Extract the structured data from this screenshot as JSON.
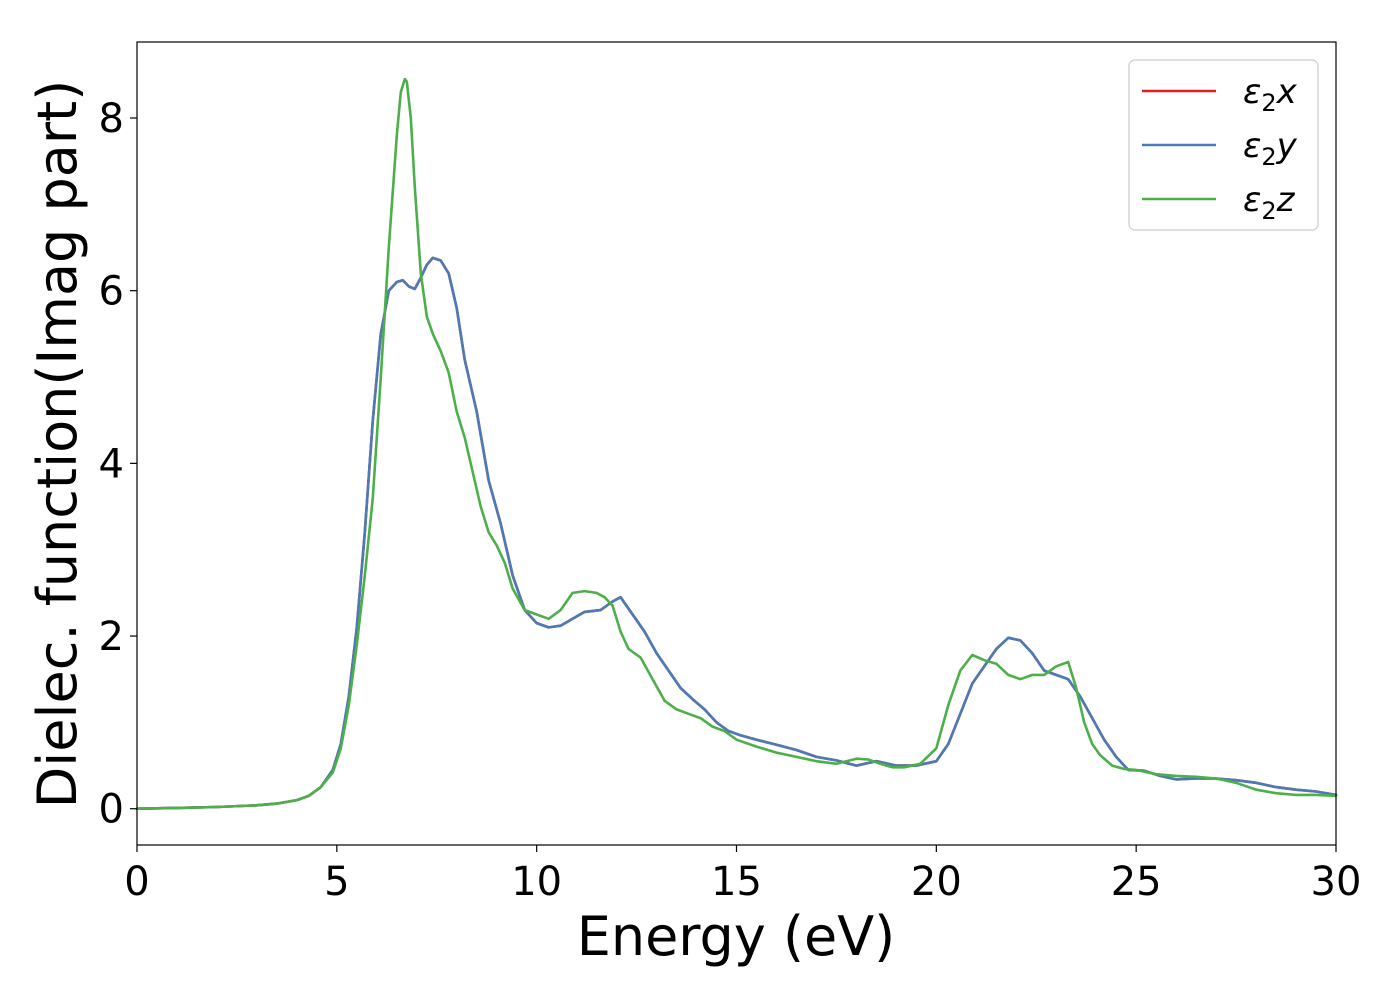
{
  "chart_data": {
    "type": "line",
    "xlabel": "Energy (eV)",
    "ylabel": "Dielec. function(Imag part)",
    "xlim": [
      0,
      30
    ],
    "ylim": [
      -0.42,
      8.88
    ],
    "xticks": [
      "0",
      "5",
      "10",
      "15",
      "20",
      "25",
      "30"
    ],
    "yticks": [
      "0",
      "2",
      "4",
      "6",
      "8"
    ],
    "grid": false,
    "legend_position": "top-right",
    "series": [
      {
        "name": "ε₂x",
        "legend_main": "ε",
        "legend_sub": "2",
        "legend_tail": "x",
        "color": "#e41a1c",
        "x": [
          0,
          1,
          2,
          3,
          3.5,
          4,
          4.3,
          4.6,
          4.9,
          5.1,
          5.3,
          5.5,
          5.7,
          5.9,
          6.1,
          6.3,
          6.5,
          6.65,
          6.8,
          6.95,
          7.1,
          7.25,
          7.4,
          7.6,
          7.8,
          8.0,
          8.2,
          8.5,
          8.8,
          9.1,
          9.4,
          9.7,
          10.0,
          10.3,
          10.6,
          10.9,
          11.2,
          11.6,
          11.9,
          12.1,
          12.4,
          12.7,
          13.0,
          13.3,
          13.6,
          13.9,
          14.2,
          14.5,
          14.8,
          15.1,
          15.5,
          16.0,
          16.5,
          17.0,
          17.5,
          18.0,
          18.5,
          19.0,
          19.5,
          20.0,
          20.3,
          20.6,
          20.9,
          21.2,
          21.5,
          21.8,
          22.1,
          22.4,
          22.7,
          23.0,
          23.3,
          23.6,
          23.9,
          24.2,
          24.5,
          24.8,
          25.2,
          25.6,
          26.0,
          26.5,
          27.0,
          27.5,
          28.0,
          28.5,
          29.0,
          29.5,
          30.0
        ],
        "y": [
          0.0,
          0.01,
          0.02,
          0.04,
          0.06,
          0.1,
          0.15,
          0.25,
          0.45,
          0.75,
          1.3,
          2.1,
          3.2,
          4.5,
          5.5,
          6.0,
          6.1,
          6.12,
          6.05,
          6.02,
          6.15,
          6.3,
          6.38,
          6.35,
          6.2,
          5.8,
          5.2,
          4.6,
          3.8,
          3.3,
          2.7,
          2.3,
          2.15,
          2.1,
          2.12,
          2.2,
          2.28,
          2.3,
          2.4,
          2.45,
          2.25,
          2.05,
          1.8,
          1.6,
          1.4,
          1.27,
          1.15,
          1.0,
          0.9,
          0.85,
          0.8,
          0.74,
          0.68,
          0.6,
          0.56,
          0.5,
          0.55,
          0.5,
          0.5,
          0.55,
          0.75,
          1.1,
          1.45,
          1.65,
          1.85,
          1.98,
          1.95,
          1.8,
          1.6,
          1.55,
          1.5,
          1.3,
          1.05,
          0.8,
          0.6,
          0.45,
          0.44,
          0.38,
          0.34,
          0.35,
          0.35,
          0.33,
          0.3,
          0.25,
          0.22,
          0.2,
          0.16
        ]
      },
      {
        "name": "ε₂y",
        "legend_main": "ε",
        "legend_sub": "2",
        "legend_tail": "y",
        "color": "#4a7bb7",
        "x": [
          0,
          1,
          2,
          3,
          3.5,
          4,
          4.3,
          4.6,
          4.9,
          5.1,
          5.3,
          5.5,
          5.7,
          5.9,
          6.1,
          6.3,
          6.5,
          6.65,
          6.8,
          6.95,
          7.1,
          7.25,
          7.4,
          7.6,
          7.8,
          8.0,
          8.2,
          8.5,
          8.8,
          9.1,
          9.4,
          9.7,
          10.0,
          10.3,
          10.6,
          10.9,
          11.2,
          11.6,
          11.9,
          12.1,
          12.4,
          12.7,
          13.0,
          13.3,
          13.6,
          13.9,
          14.2,
          14.5,
          14.8,
          15.1,
          15.5,
          16.0,
          16.5,
          17.0,
          17.5,
          18.0,
          18.5,
          19.0,
          19.5,
          20.0,
          20.3,
          20.6,
          20.9,
          21.2,
          21.5,
          21.8,
          22.1,
          22.4,
          22.7,
          23.0,
          23.3,
          23.6,
          23.9,
          24.2,
          24.5,
          24.8,
          25.2,
          25.6,
          26.0,
          26.5,
          27.0,
          27.5,
          28.0,
          28.5,
          29.0,
          29.5,
          30.0
        ],
        "y": [
          0.0,
          0.01,
          0.02,
          0.04,
          0.06,
          0.1,
          0.15,
          0.25,
          0.45,
          0.75,
          1.3,
          2.1,
          3.2,
          4.5,
          5.5,
          6.0,
          6.1,
          6.12,
          6.05,
          6.02,
          6.15,
          6.3,
          6.38,
          6.35,
          6.2,
          5.8,
          5.2,
          4.6,
          3.8,
          3.3,
          2.7,
          2.3,
          2.15,
          2.1,
          2.12,
          2.2,
          2.28,
          2.3,
          2.4,
          2.45,
          2.25,
          2.05,
          1.8,
          1.6,
          1.4,
          1.27,
          1.15,
          1.0,
          0.9,
          0.85,
          0.8,
          0.74,
          0.68,
          0.6,
          0.56,
          0.5,
          0.55,
          0.5,
          0.5,
          0.55,
          0.75,
          1.1,
          1.45,
          1.65,
          1.85,
          1.98,
          1.95,
          1.8,
          1.6,
          1.55,
          1.5,
          1.3,
          1.05,
          0.8,
          0.6,
          0.45,
          0.44,
          0.38,
          0.34,
          0.35,
          0.35,
          0.33,
          0.3,
          0.25,
          0.22,
          0.2,
          0.16
        ]
      },
      {
        "name": "ε₂z",
        "legend_main": "ε",
        "legend_sub": "2",
        "legend_tail": "z",
        "color": "#4daf4a",
        "x": [
          0,
          1,
          2,
          3,
          3.5,
          4,
          4.3,
          4.6,
          4.9,
          5.1,
          5.3,
          5.5,
          5.7,
          5.9,
          6.1,
          6.3,
          6.5,
          6.6,
          6.7,
          6.75,
          6.85,
          6.95,
          7.1,
          7.25,
          7.4,
          7.6,
          7.8,
          8.0,
          8.2,
          8.4,
          8.6,
          8.8,
          9.0,
          9.2,
          9.4,
          9.7,
          10.0,
          10.3,
          10.6,
          10.9,
          11.2,
          11.5,
          11.7,
          11.9,
          12.1,
          12.3,
          12.6,
          12.9,
          13.2,
          13.5,
          13.8,
          14.1,
          14.4,
          14.7,
          15.0,
          15.5,
          16.0,
          16.5,
          17.0,
          17.5,
          18.0,
          18.3,
          18.6,
          18.9,
          19.2,
          19.6,
          20.0,
          20.3,
          20.6,
          20.9,
          21.2,
          21.5,
          21.8,
          22.1,
          22.4,
          22.7,
          23.0,
          23.3,
          23.5,
          23.7,
          23.9,
          24.1,
          24.4,
          24.7,
          25.0,
          25.5,
          26.0,
          26.5,
          27.0,
          27.5,
          28.0,
          28.5,
          29.0,
          29.5,
          30.0
        ],
        "y": [
          0.0,
          0.01,
          0.02,
          0.04,
          0.06,
          0.1,
          0.15,
          0.25,
          0.42,
          0.7,
          1.2,
          1.9,
          2.7,
          3.6,
          5.0,
          6.5,
          7.8,
          8.3,
          8.45,
          8.42,
          8.0,
          7.2,
          6.2,
          5.7,
          5.5,
          5.3,
          5.05,
          4.6,
          4.3,
          3.9,
          3.5,
          3.2,
          3.05,
          2.85,
          2.55,
          2.3,
          2.25,
          2.2,
          2.3,
          2.5,
          2.52,
          2.5,
          2.45,
          2.35,
          2.05,
          1.85,
          1.75,
          1.5,
          1.25,
          1.15,
          1.1,
          1.05,
          0.95,
          0.9,
          0.8,
          0.72,
          0.65,
          0.6,
          0.55,
          0.52,
          0.58,
          0.57,
          0.52,
          0.48,
          0.48,
          0.52,
          0.7,
          1.2,
          1.6,
          1.78,
          1.72,
          1.68,
          1.55,
          1.5,
          1.55,
          1.55,
          1.65,
          1.7,
          1.4,
          1.0,
          0.75,
          0.62,
          0.5,
          0.46,
          0.45,
          0.4,
          0.38,
          0.37,
          0.35,
          0.3,
          0.22,
          0.18,
          0.16,
          0.16,
          0.15
        ]
      }
    ]
  }
}
